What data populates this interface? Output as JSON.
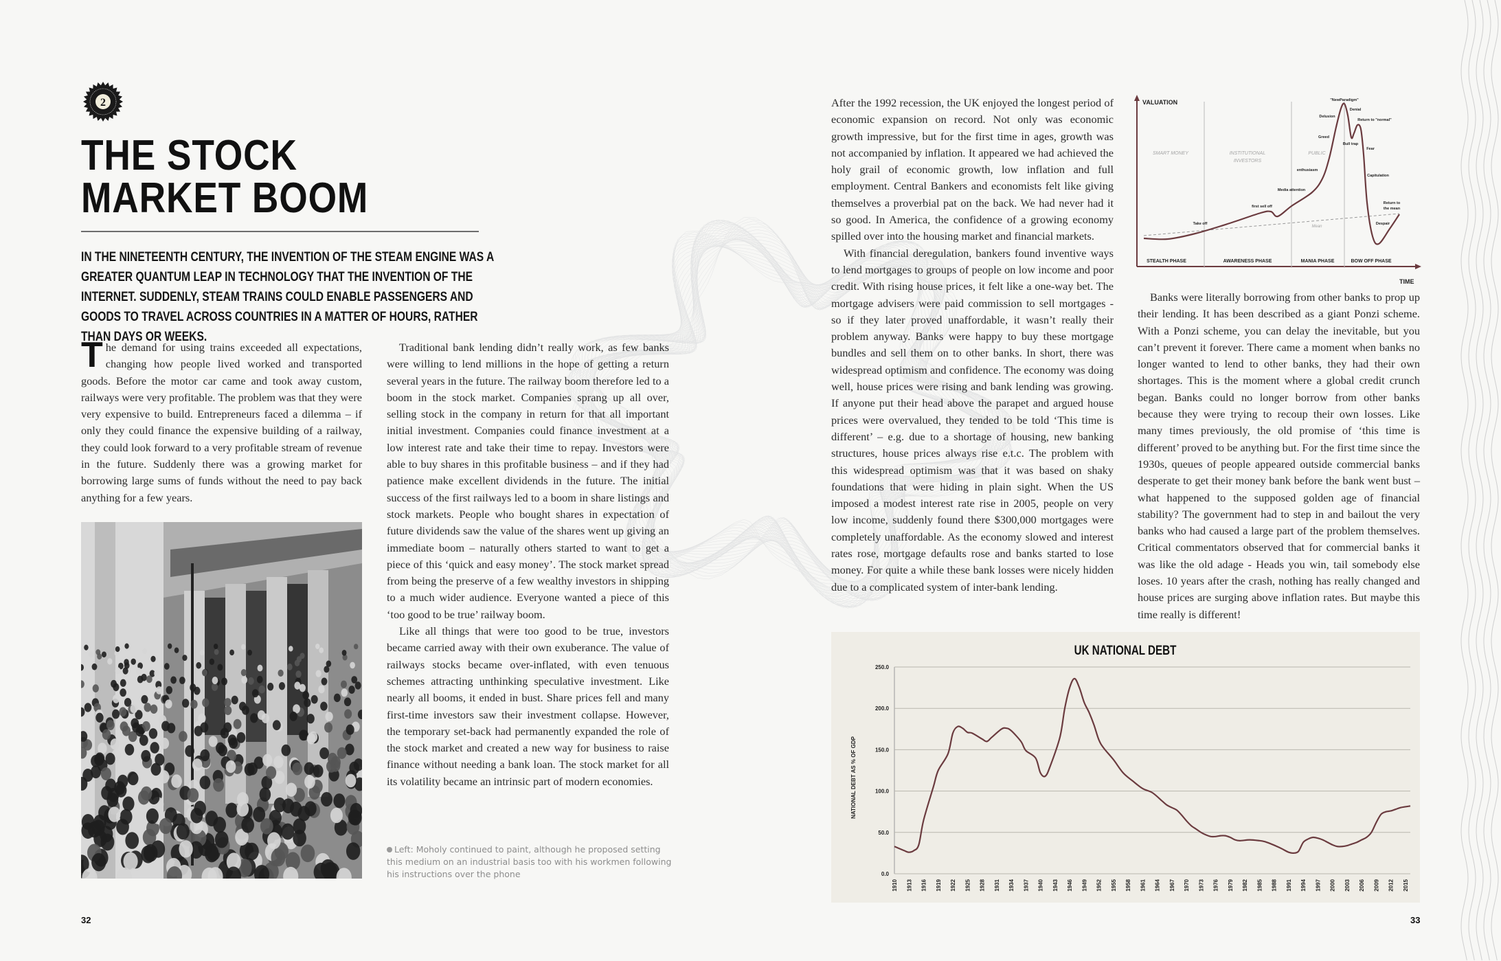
{
  "badge": {
    "number": "2"
  },
  "title": {
    "line1": "THE STOCK",
    "line2": "MARKET BOOM"
  },
  "intro": "IN THE NINETEENTH CENTURY, THE INVENTION OF THE STEAM ENGINE WAS A GREATER QUANTUM LEAP IN TECHNOLOGY THAT THE INVENTION OF THE INTERNET. SUDDENLY, STEAM TRAINS COULD ENABLE PASSENGERS AND GOODS TO TRAVEL ACROSS COUNTRIES IN A MATTER OF HOURS, RATHER THAN DAYS OR WEEKS.",
  "column1": {
    "dropcap": "T",
    "p1": "he demand for using trains exceeded all expectations, changing how people lived worked and transported goods. Before the motor car came and took away custom, railways were very profitable. The problem was that they were very expensive to build. Entrepreneurs faced a dilemma – if only they could finance the expensive building of a railway, they could look forward to a very profitable stream of revenue in the future. Suddenly there was a growing market for borrowing large sums of funds without the need to pay back anything for a few years."
  },
  "column2": {
    "p1": "Traditional bank lending didn’t really work, as few banks were willing to lend millions in the hope of getting a return several years in the future. The railway boom therefore led to a boom in the stock market. Companies sprang up all over, selling stock in the company in return for that all important initial investment. Companies could finance investment at a low interest rate and take their time to repay. Investors were able to buy shares in this profitable business – and if they had patience make excellent dividends in the future. The initial success of the first railways led to a boom in share listings and stock markets. People who bought shares in expectation of future dividends saw the value of the shares went up giving an immediate boom – naturally others started to want to get a piece of this ‘quick and easy money’. The stock market spread from being the preserve of a few wealthy investors in shipping to a much wider audience. Everyone wanted a piece of this ‘too good to be true’ railway boom.",
    "p2": "Like all things that were too good to be true, investors became carried away with their own exuberance. The value of railways stocks became over-inflated, with even tenuous schemes attracting unthinking speculative investment. Like nearly all booms, it ended in bust. Share prices fell and many first-time investors saw their investment collapse. However, the temporary set-back had permanently expanded the role of the stock market and created a new way for business to raise finance without needing a bank loan. The stock market for all its volatility became an intrinsic part of modern economies."
  },
  "caption": "Left: Moholy continued to paint, although he proposed setting this medium on an industrial basis too with his workmen following his instructions over the phone",
  "column3": {
    "p1": "After the 1992 recession, the UK enjoyed the longest period of economic expansion on record. Not only was economic growth impressive, but for the first time in ages, growth was not accompanied by inflation. It appeared we had achieved the holy grail of economic growth, low inflation and full employment. Central Bankers and economists felt like giving themselves a proverbial pat on the back. We had never had it so good. In America, the confidence of a growing economy spilled over into the housing market and financial markets.",
    "p2": "With financial deregulation, bankers found inventive ways to lend mortgages to groups of people on low income and poor credit. With rising house prices, it felt like a one-way bet. The mortgage advisers were paid commission to sell mortgages - so if they later proved unaffordable, it wasn’t really their problem anyway. Banks were happy to buy these mortgage bundles and sell them on to other banks. In short, there was widespread optimism and confidence. The economy was doing well, house prices were rising and bank lending was growing. If anyone put their head above the parapet and argued house prices were overvalued, they tended to be told ‘This time is different’ – e.g. due to a shortage of housing, new banking structures, house prices always rise e.t.c. The problem with this widespread optimism was that it was based on shaky foundations that were hiding in plain sight. When the US imposed a modest interest rate rise in 2005, people on very low income, suddenly found there $300,000 mortgages were completely unaffordable. As the economy slowed and interest rates rose, mortgage defaults rose and banks started to lose money. For quite a while these bank losses were nicely hidden due to a complicated system of inter-bank lending."
  },
  "column4": {
    "p1": "Banks were literally borrowing from other banks to prop up their lending. It has been described as a giant Ponzi scheme. With a Ponzi scheme, you can delay the inevitable, but you can’t prevent it forever. There came a moment when banks no longer wanted to lend to other banks, they had their own shortages. This is the moment where a global credit crunch began. Banks could no longer borrow from other banks because they were trying to recoup their own losses. Like many times previously, the old promise of ‘this time is different’ proved to be anything but. For the first time since the 1930s, queues of people appeared outside commercial banks desperate to get their money bank before the bank went bust – what happened to the supposed golden age of financial stability? The government had to step in and bailout the very banks who had caused a large part of the problem themselves. Critical commentators observed that for commercial banks it was like the old adage - Heads you win, tail somebody else loses. 10 years after the crash, nothing has really changed and house prices are surging above inflation rates. But maybe this time really is different!"
  },
  "bubble_diagram": {
    "y_label": "VALUATION",
    "x_label": "TIME",
    "phases": [
      "STEALTH PHASE",
      "AWARENESS PHASE",
      "MANIA PHASE",
      "BOW OFF PHASE"
    ],
    "groups": [
      "SMART MONEY",
      "INSTITUTIONAL",
      "INVESTORS",
      "PUBLIC"
    ],
    "mean": "Mean",
    "annotations": [
      "Take off",
      "first sell off",
      "Media attention",
      "enthusiasm",
      "Greed",
      "Delusion",
      "\"NewParadigm\"",
      "Denial",
      "Return to \"normal\"",
      "Bull trap",
      "Fear",
      "Capitulation",
      "Return to",
      "the mean",
      "Despair"
    ],
    "line_color": "#6b3b3f"
  },
  "page_numbers": {
    "left": "32",
    "right": "33"
  },
  "chart_data": {
    "type": "line",
    "title": "UK NATIONAL DEBT",
    "ylabel": "NATIONAL DEBT AS % OF GDP",
    "xlabel": "",
    "ylim": [
      0,
      250
    ],
    "yticks": [
      "0.0",
      "50.0",
      "100.0",
      "150.0",
      "200.0",
      "250.0"
    ],
    "xticks": [
      "1910",
      "1913",
      "1916",
      "1919",
      "1922",
      "1925",
      "1928",
      "1931",
      "1934",
      "1937",
      "1940",
      "1943",
      "1946",
      "1949",
      "1952",
      "1955",
      "1958",
      "1961",
      "1964",
      "1967",
      "1970",
      "1973",
      "1976",
      "1979",
      "1982",
      "1985",
      "1988",
      "1991",
      "1994",
      "1997",
      "2000",
      "2003",
      "2006",
      "2009",
      "2012",
      "2015"
    ],
    "grid": "horizontal",
    "line_color": "#6b3b3f",
    "background": "#efede6",
    "x": [
      1910,
      1912,
      1913,
      1914,
      1915,
      1916,
      1918,
      1919,
      1921,
      1922,
      1923,
      1924,
      1925,
      1926,
      1928,
      1929,
      1930,
      1932,
      1933,
      1934,
      1936,
      1937,
      1939,
      1940,
      1941,
      1942,
      1944,
      1945,
      1946,
      1947,
      1948,
      1949,
      1950,
      1951,
      1952,
      1953,
      1955,
      1957,
      1959,
      1961,
      1963,
      1965,
      1966,
      1967,
      1968,
      1969,
      1970,
      1971,
      1972,
      1973,
      1974,
      1975,
      1976,
      1977,
      1978,
      1979,
      1980,
      1981,
      1983,
      1985,
      1986,
      1987,
      1989,
      1990,
      1991,
      1992,
      1993,
      1994,
      1995,
      1996,
      1997,
      1998,
      1999,
      2000,
      2001,
      2002,
      2003,
      2004,
      2005,
      2006,
      2007,
      2008,
      2009,
      2010,
      2011,
      2012,
      2013,
      2014,
      2015,
      2016
    ],
    "values": [
      33,
      28,
      26,
      28,
      35,
      65,
      105,
      125,
      145,
      170,
      178,
      176,
      171,
      170,
      163,
      160,
      165,
      175,
      176,
      173,
      160,
      149,
      140,
      122,
      118,
      130,
      165,
      200,
      225,
      236,
      225,
      207,
      195,
      180,
      162,
      152,
      138,
      122,
      112,
      103,
      98,
      88,
      83,
      80,
      77,
      71,
      64,
      58,
      54,
      50,
      47,
      45,
      45,
      46,
      46,
      44,
      41,
      40,
      41,
      40,
      39,
      37,
      32,
      29,
      26,
      25,
      27,
      38,
      42,
      44,
      43,
      41,
      38,
      35,
      33,
      33,
      34,
      36,
      38,
      41,
      44,
      50,
      62,
      72,
      75,
      76,
      78,
      80,
      81,
      82
    ]
  }
}
